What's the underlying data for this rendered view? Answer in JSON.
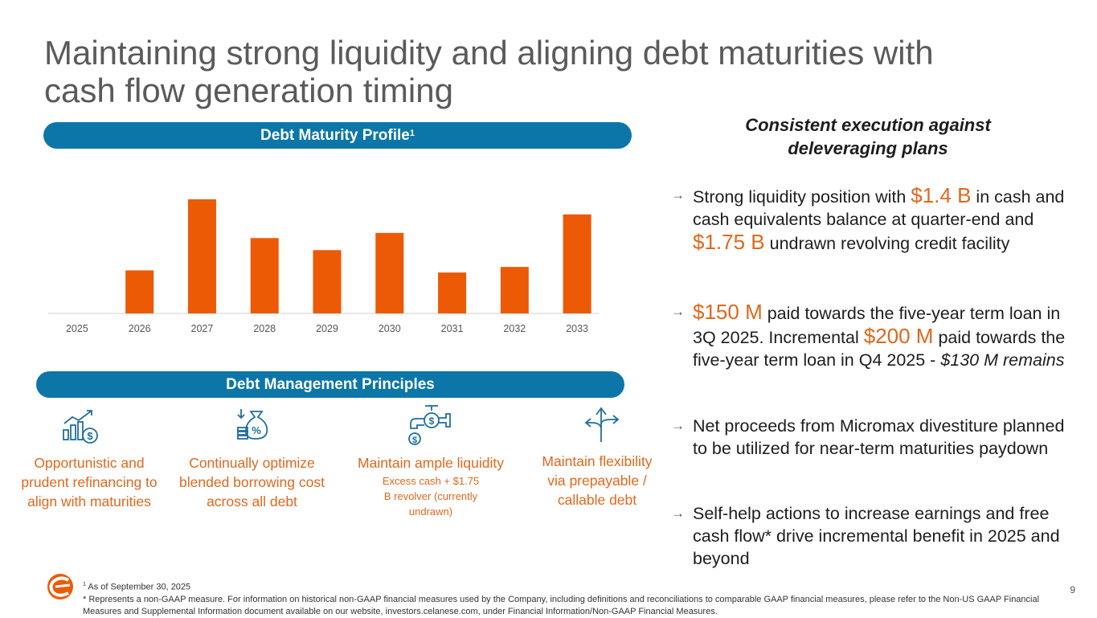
{
  "title": "Maintaining strong liquidity and aligning debt maturities with cash flow generation timing",
  "left": {
    "debt_profile_label": "Debt Maturity Profile",
    "debt_profile_sup": "1",
    "principles_label": "Debt Management Principles",
    "principles": [
      {
        "icon": "chart-dollar-icon",
        "title": "Opportunistic and prudent refinancing to align with maturities",
        "sub": ""
      },
      {
        "icon": "money-bag-percent-icon",
        "title": "Continually optimize blended borrowing cost across all debt",
        "sub": ""
      },
      {
        "icon": "faucet-dollar-icon",
        "title": "Maintain ample liquidity",
        "sub": "Excess cash + $1.75 B revolver (currently undrawn)"
      },
      {
        "icon": "split-arrows-icon",
        "title": "Maintain flexibility via prepayable / callable debt",
        "sub": ""
      }
    ]
  },
  "chart_data": {
    "type": "bar",
    "title": "Debt Maturity Profile",
    "categories": [
      "2025",
      "2026",
      "2027",
      "2028",
      "2029",
      "2030",
      "2031",
      "2032",
      "2033"
    ],
    "values": [
      0,
      1.0,
      2.65,
      1.75,
      1.47,
      1.87,
      0.95,
      1.08,
      2.3
    ],
    "ylim": [
      0,
      2.8
    ],
    "xlabel": "",
    "ylabel": "",
    "bar_color": "#ec5a06",
    "grid": false,
    "y_axis_shown": false
  },
  "right": {
    "heading": "Consistent execution against deleveraging plans",
    "bullets": [
      {
        "parts": [
          {
            "t": "Strong liquidity position with ",
            "s": "n"
          },
          {
            "t": "$1.4 B",
            "s": "hl"
          },
          {
            "t": " in cash and cash equivalents balance at quarter-end and ",
            "s": "n"
          },
          {
            "t": "$1.75 B",
            "s": "hl"
          },
          {
            "t": " undrawn revolving credit facility",
            "s": "n"
          }
        ]
      },
      {
        "parts": [
          {
            "t": "$150 M",
            "s": "hl"
          },
          {
            "t": " paid towards the five-year term loan in 3Q 2025. Incremental ",
            "s": "n"
          },
          {
            "t": "$200 M",
            "s": "hl"
          },
          {
            "t": " paid towards the five-year term loan in Q4 2025 - ",
            "s": "n"
          },
          {
            "t": "$130 M remains",
            "s": "it"
          }
        ]
      },
      {
        "parts": [
          {
            "t": "Net proceeds from Micromax divestiture planned to be utilized for near-term maturities paydown",
            "s": "n"
          }
        ]
      },
      {
        "parts": [
          {
            "t": "Self-help actions to increase earnings and free cash flow* drive incremental benefit in 2025 and beyond",
            "s": "n"
          }
        ]
      }
    ]
  },
  "footnotes": {
    "sup": "1",
    "note1": "As of September 30, 2025",
    "note2": "* Represents a non-GAAP measure. For information on historical non-GAAP financial measures used by the Company, including definitions and reconciliations to comparable GAAP financial measures, please refer to the Non-US GAAP Financial Measures and Supplemental Information document available on our website, investors.celanese.com, under Financial Information/Non-GAAP Financial Measures."
  },
  "page_number": "9",
  "colors": {
    "accent": "#e0681d",
    "bar": "#ec5a06",
    "pill": "#0d76a8"
  }
}
